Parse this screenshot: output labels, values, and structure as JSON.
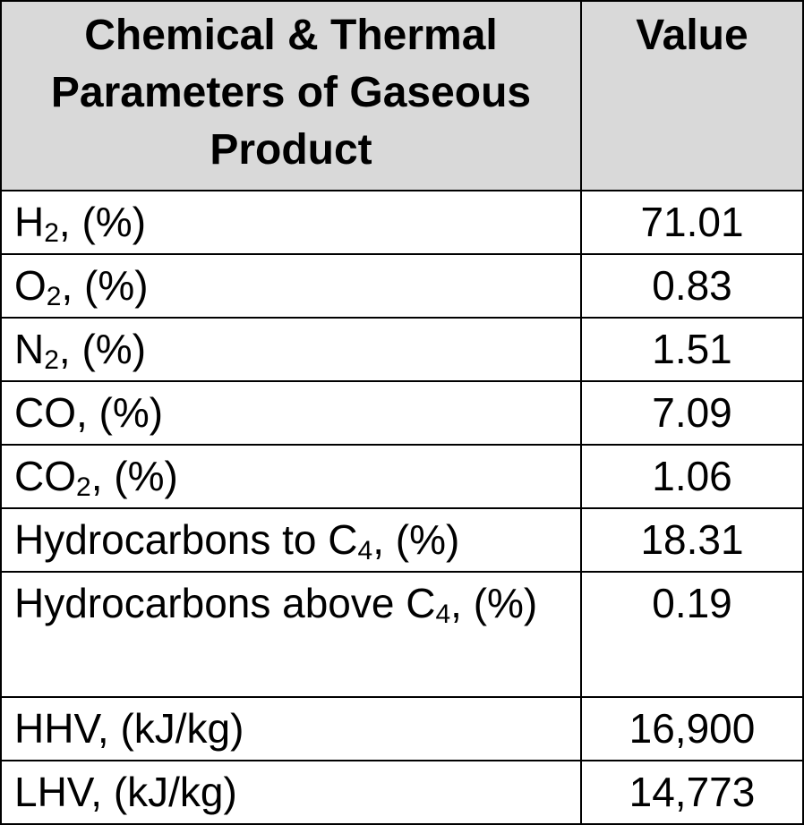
{
  "table": {
    "header": {
      "parameter": "Chemical & Thermal Parameters of Gaseous Product",
      "value": "Value"
    },
    "rows": [
      {
        "name": "H",
        "sub": "2",
        "suffix": ", (%)",
        "value": "71.01"
      },
      {
        "name": "O",
        "sub": "2",
        "suffix": ", (%)",
        "value": "0.83"
      },
      {
        "name": "N",
        "sub": "2",
        "suffix": ", (%)",
        "value": "1.51"
      },
      {
        "name": "CO, (%)",
        "sub": "",
        "suffix": "",
        "value": "7.09"
      },
      {
        "name": "CO",
        "sub": "2",
        "suffix": ", (%)",
        "value": "1.06"
      },
      {
        "name": "Hydrocarbons to C",
        "sub": "4",
        "suffix": ", (%)",
        "value": "18.31"
      },
      {
        "name": "Hydrocarbons above C",
        "sub": "4",
        "suffix": ", (%)",
        "value": "0.19"
      },
      {
        "name": "HHV, (kJ/kg)",
        "sub": "",
        "suffix": "",
        "value": "16,900"
      },
      {
        "name": "LHV, (kJ/kg)",
        "sub": "",
        "suffix": "",
        "value": "14,773"
      }
    ]
  }
}
